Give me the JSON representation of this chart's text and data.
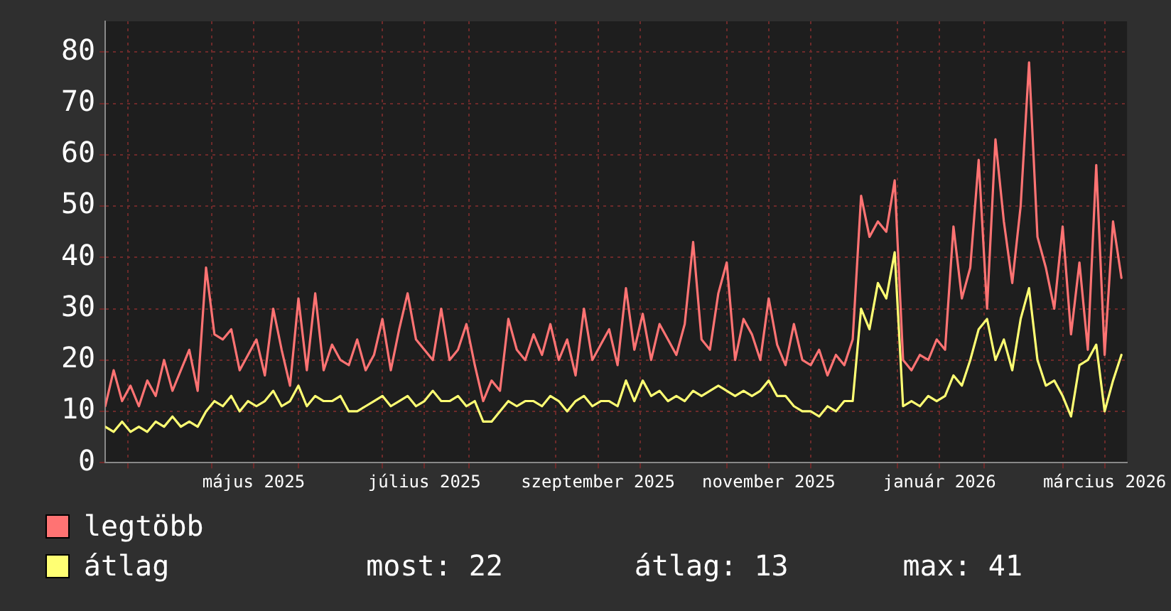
{
  "chart_data": {
    "type": "line",
    "x": [
      "2025-03-24",
      "2025-03-27",
      "2025-03-30",
      "2025-04-02",
      "2025-04-05",
      "2025-04-08",
      "2025-04-11",
      "2025-04-14",
      "2025-04-17",
      "2025-04-20",
      "2025-04-23",
      "2025-04-26",
      "2025-04-29",
      "2025-05-02",
      "2025-05-05",
      "2025-05-08",
      "2025-05-11",
      "2025-05-14",
      "2025-05-17",
      "2025-05-20",
      "2025-05-23",
      "2025-05-26",
      "2025-05-29",
      "2025-06-01",
      "2025-06-04",
      "2025-06-07",
      "2025-06-10",
      "2025-06-13",
      "2025-06-16",
      "2025-06-19",
      "2025-06-22",
      "2025-06-25",
      "2025-06-28",
      "2025-07-01",
      "2025-07-04",
      "2025-07-07",
      "2025-07-10",
      "2025-07-13",
      "2025-07-16",
      "2025-07-19",
      "2025-07-22",
      "2025-07-25",
      "2025-07-28",
      "2025-07-31",
      "2025-08-03",
      "2025-08-06",
      "2025-08-09",
      "2025-08-12",
      "2025-08-15",
      "2025-08-18",
      "2025-08-21",
      "2025-08-24",
      "2025-08-27",
      "2025-08-30",
      "2025-09-02",
      "2025-09-05",
      "2025-09-08",
      "2025-09-11",
      "2025-09-14",
      "2025-09-17",
      "2025-09-20",
      "2025-09-23",
      "2025-09-26",
      "2025-09-29",
      "2025-10-02",
      "2025-10-05",
      "2025-10-08",
      "2025-10-11",
      "2025-10-14",
      "2025-10-17",
      "2025-10-20",
      "2025-10-23",
      "2025-10-26",
      "2025-10-29",
      "2025-11-01",
      "2025-11-04",
      "2025-11-07",
      "2025-11-10",
      "2025-11-13",
      "2025-11-16",
      "2025-11-19",
      "2025-11-22",
      "2025-11-25",
      "2025-11-28",
      "2025-12-01",
      "2025-12-04",
      "2025-12-07",
      "2025-12-10",
      "2025-12-13",
      "2025-12-16",
      "2025-12-19",
      "2025-12-22",
      "2025-12-25",
      "2025-12-28",
      "2025-12-31",
      "2026-01-03",
      "2026-01-06",
      "2026-01-09",
      "2026-01-12",
      "2026-01-15",
      "2026-01-18",
      "2026-01-21",
      "2026-01-24",
      "2026-01-27",
      "2026-01-30",
      "2026-02-02",
      "2026-02-05",
      "2026-02-08",
      "2026-02-11",
      "2026-02-14",
      "2026-02-17",
      "2026-02-20",
      "2026-02-23",
      "2026-02-26",
      "2026-03-01",
      "2026-03-04",
      "2026-03-07",
      "2026-03-10",
      "2026-03-13",
      "2026-03-16",
      "2026-03-19",
      "2026-03-22"
    ],
    "series": [
      {
        "name": "legtöbb",
        "color": "#ff7373",
        "values": [
          11,
          18,
          12,
          15,
          11,
          16,
          13,
          20,
          14,
          18,
          22,
          14,
          38,
          25,
          24,
          26,
          18,
          21,
          24,
          17,
          30,
          22,
          15,
          32,
          18,
          33,
          18,
          23,
          20,
          19,
          24,
          18,
          21,
          28,
          18,
          26,
          33,
          24,
          22,
          20,
          30,
          20,
          22,
          27,
          19,
          12,
          16,
          14,
          28,
          22,
          20,
          25,
          21,
          27,
          20,
          24,
          17,
          30,
          20,
          23,
          26,
          19,
          34,
          22,
          29,
          20,
          27,
          24,
          21,
          27,
          43,
          24,
          22,
          33,
          39,
          20,
          28,
          25,
          20,
          32,
          23,
          19,
          27,
          20,
          19,
          22,
          17,
          21,
          19,
          24,
          52,
          44,
          47,
          45,
          55,
          20,
          18,
          21,
          20,
          24,
          22,
          46,
          32,
          38,
          59,
          30,
          63,
          47,
          35,
          50,
          78,
          44,
          38,
          30,
          46,
          25,
          39,
          22,
          58,
          21,
          47,
          36
        ]
      },
      {
        "name": "átlag",
        "color": "#ffff73",
        "values": [
          7,
          6,
          8,
          6,
          7,
          6,
          8,
          7,
          9,
          7,
          8,
          7,
          10,
          12,
          11,
          13,
          10,
          12,
          11,
          12,
          14,
          11,
          12,
          15,
          11,
          13,
          12,
          12,
          13,
          10,
          10,
          11,
          12,
          13,
          11,
          12,
          13,
          11,
          12,
          14,
          12,
          12,
          13,
          11,
          12,
          8,
          8,
          10,
          12,
          11,
          12,
          12,
          11,
          13,
          12,
          10,
          12,
          13,
          11,
          12,
          12,
          11,
          16,
          12,
          16,
          13,
          14,
          12,
          13,
          12,
          14,
          13,
          14,
          15,
          14,
          13,
          14,
          13,
          14,
          16,
          13,
          13,
          11,
          10,
          10,
          9,
          11,
          10,
          12,
          12,
          30,
          26,
          35,
          32,
          41,
          11,
          12,
          11,
          13,
          12,
          13,
          17,
          15,
          20,
          26,
          28,
          20,
          24,
          18,
          28,
          34,
          20,
          15,
          16,
          13,
          9,
          19,
          20,
          23,
          10,
          16,
          21
        ]
      }
    ],
    "xlim": [
      "2025-03-24",
      "2026-03-24"
    ],
    "xticks": [
      {
        "value": "2025-04-01",
        "label": null
      },
      {
        "value": "2025-05-01",
        "label": null
      },
      {
        "value": "2025-05-16",
        "label": "május 2025"
      },
      {
        "value": "2025-06-01",
        "label": null
      },
      {
        "value": "2025-07-01",
        "label": null
      },
      {
        "value": "2025-07-16",
        "label": "július 2025"
      },
      {
        "value": "2025-08-01",
        "label": null
      },
      {
        "value": "2025-09-01",
        "label": null
      },
      {
        "value": "2025-09-16",
        "label": "szeptember 2025"
      },
      {
        "value": "2025-10-01",
        "label": null
      },
      {
        "value": "2025-11-01",
        "label": null
      },
      {
        "value": "2025-11-16",
        "label": "november 2025"
      },
      {
        "value": "2025-12-01",
        "label": null
      },
      {
        "value": "2026-01-01",
        "label": null
      },
      {
        "value": "2026-01-16",
        "label": "január 2026"
      },
      {
        "value": "2026-02-01",
        "label": null
      },
      {
        "value": "2026-03-01",
        "label": null
      },
      {
        "value": "2026-03-16",
        "label": "március 2026"
      }
    ],
    "ylim": [
      0,
      86
    ],
    "yticks": [
      0,
      10,
      20,
      30,
      40,
      50,
      60,
      70,
      80
    ],
    "grid": true,
    "legend": "bottom",
    "annotations": [
      "most: 22",
      "átlag: 13",
      "max: 41"
    ]
  }
}
